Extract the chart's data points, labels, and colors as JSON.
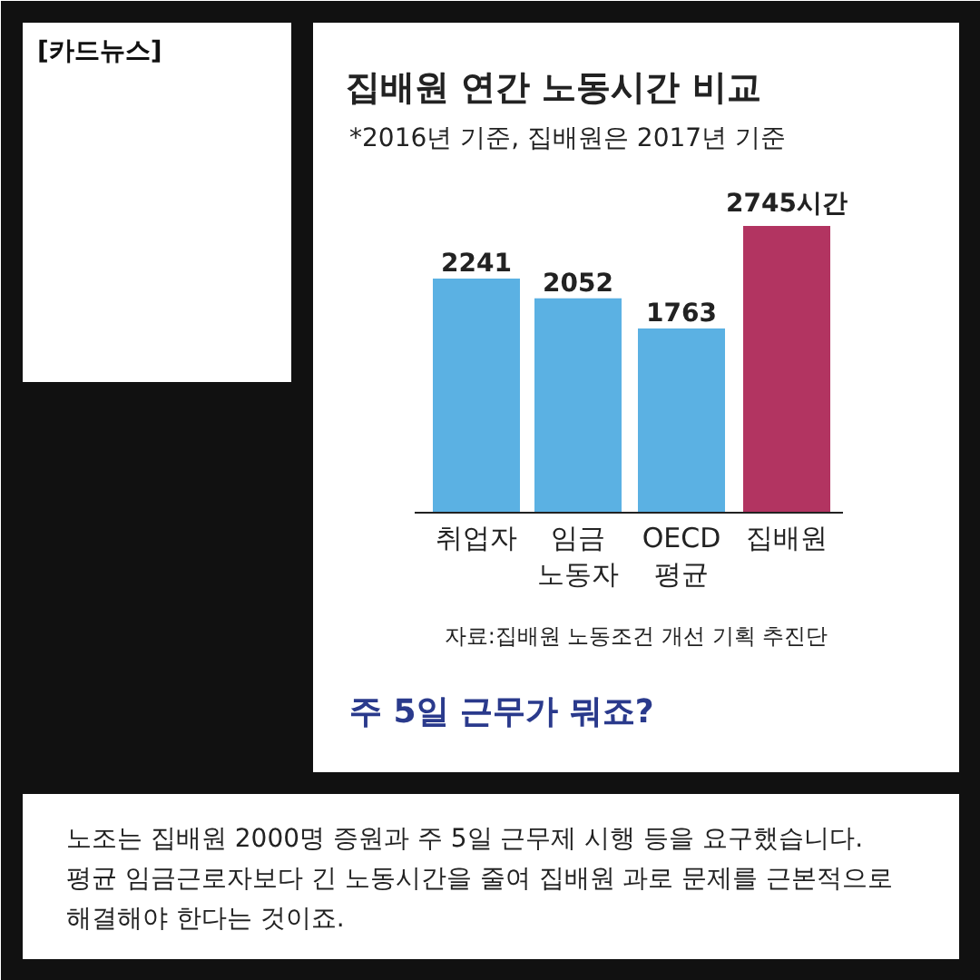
{
  "chart_data": {
    "type": "bar",
    "title": "집배원 연간 노동시간 비교",
    "subtitle": "*2016년 기준, 집배원은 2017년 기준",
    "categories": [
      "취업자",
      "임금\n노동자",
      "OECD\n평균",
      "집배원"
    ],
    "values": [
      2241,
      2052,
      1763,
      2745
    ],
    "colors": [
      "#5bb1e3",
      "#5bb1e3",
      "#5bb1e3",
      "#b23461"
    ],
    "value_labels": [
      "2241",
      "2052",
      "1763",
      "2745시간"
    ],
    "annotations": [
      "[카드뉴스]",
      "자료:집배원 노동조건 개선 기획 추진단",
      "주 5일 근무가 뭐죠?",
      "노조는 집배원 2000명 증원과 주 5일 근무제 시행 등을 요구했습니다.\n평균 임금근로자보다 긴 노동시간을 줄여 집배원 과로 문제를 근본적으로\n해결해야 한다는 것이죠."
    ]
  }
}
